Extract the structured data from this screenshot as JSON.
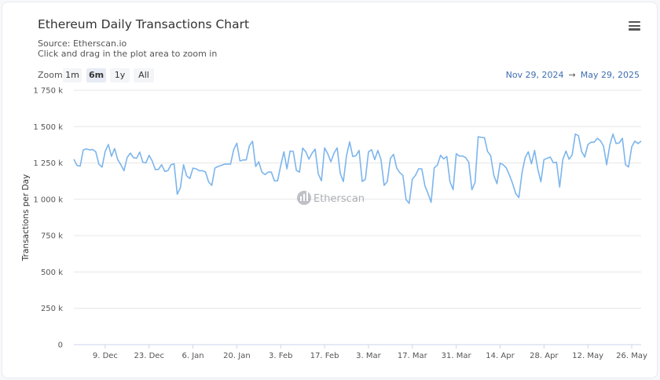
{
  "header": {
    "title": "Ethereum Daily Transactions Chart",
    "source": "Source: Etherscan.io",
    "hint": "Click and drag in the plot area to zoom in",
    "menu_icon": "hamburger-menu-icon"
  },
  "zoom": {
    "label": "Zoom",
    "buttons": [
      {
        "label": "1m"
      },
      {
        "label": "6m",
        "selected": true
      },
      {
        "label": "1y"
      },
      {
        "label": "All"
      }
    ]
  },
  "range": {
    "from": "Nov 29, 2024",
    "arrow": "→",
    "to": "May 29, 2025"
  },
  "watermark": "Etherscan",
  "colors": {
    "line": "#7cb5ec",
    "range_text": "#3f6eb0",
    "grid": "#e6e6e6"
  },
  "chart_data": {
    "type": "line",
    "ylabel": "Transactions per Day",
    "ylim": [
      0,
      1750000
    ],
    "yticks": [
      {
        "value": 0,
        "label": "0"
      },
      {
        "value": 250000,
        "label": "250 k"
      },
      {
        "value": 500000,
        "label": "500 k"
      },
      {
        "value": 750000,
        "label": "750 k"
      },
      {
        "value": 1000000,
        "label": "1 000 k"
      },
      {
        "value": 1250000,
        "label": "1 250 k"
      },
      {
        "value": 1500000,
        "label": "1 500 k"
      },
      {
        "value": 1750000,
        "label": "1 750 k"
      }
    ],
    "xlim": [
      "2024-11-29",
      "2025-05-29"
    ],
    "xticks": [
      {
        "date": "2024-12-09",
        "label": "9. Dec"
      },
      {
        "date": "2024-12-23",
        "label": "23. Dec"
      },
      {
        "date": "2025-01-06",
        "label": "6. Jan"
      },
      {
        "date": "2025-01-20",
        "label": "20. Jan"
      },
      {
        "date": "2025-02-03",
        "label": "3. Feb"
      },
      {
        "date": "2025-02-17",
        "label": "17. Feb"
      },
      {
        "date": "2025-03-03",
        "label": "3. Mar"
      },
      {
        "date": "2025-03-17",
        "label": "17. Mar"
      },
      {
        "date": "2025-03-31",
        "label": "31. Mar"
      },
      {
        "date": "2025-04-14",
        "label": "14. Apr"
      },
      {
        "date": "2025-04-28",
        "label": "28. Apr"
      },
      {
        "date": "2025-05-12",
        "label": "12. May"
      },
      {
        "date": "2025-05-26",
        "label": "26. May"
      }
    ],
    "grid": true,
    "x_interval": "daily",
    "values_k": [
      1276,
      1233,
      1228,
      1340,
      1347,
      1340,
      1343,
      1327,
      1241,
      1222,
      1330,
      1377,
      1296,
      1349,
      1273,
      1238,
      1197,
      1287,
      1318,
      1287,
      1282,
      1325,
      1255,
      1251,
      1303,
      1264,
      1204,
      1206,
      1238,
      1192,
      1197,
      1238,
      1244,
      1035,
      1080,
      1238,
      1161,
      1143,
      1214,
      1210,
      1197,
      1197,
      1189,
      1120,
      1096,
      1215,
      1226,
      1233,
      1242,
      1242,
      1242,
      1341,
      1386,
      1264,
      1271,
      1271,
      1368,
      1399,
      1226,
      1258,
      1187,
      1170,
      1187,
      1187,
      1127,
      1127,
      1233,
      1327,
      1210,
      1332,
      1330,
      1199,
      1187,
      1352,
      1327,
      1276,
      1318,
      1345,
      1174,
      1127,
      1354,
      1314,
      1258,
      1318,
      1354,
      1177,
      1122,
      1300,
      1395,
      1294,
      1300,
      1336,
      1123,
      1138,
      1327,
      1341,
      1273,
      1336,
      1273,
      1096,
      1122,
      1282,
      1309,
      1215,
      1183,
      1165,
      998,
      972,
      1138,
      1165,
      1210,
      1210,
      1093,
      1039,
      979,
      1217,
      1235,
      1303,
      1278,
      1294,
      1120,
      1066,
      1314,
      1298,
      1298,
      1287,
      1255,
      1066,
      1115,
      1431,
      1426,
      1424,
      1330,
      1300,
      1165,
      1107,
      1249,
      1238,
      1215,
      1165,
      1107,
      1039,
      1012,
      1183,
      1287,
      1327,
      1244,
      1336,
      1210,
      1120,
      1273,
      1282,
      1291,
      1251,
      1255,
      1084,
      1273,
      1332,
      1276,
      1305,
      1449,
      1438,
      1330,
      1291,
      1377,
      1393,
      1393,
      1420,
      1404,
      1366,
      1238,
      1372,
      1449,
      1384,
      1388,
      1420,
      1238,
      1222,
      1361,
      1400,
      1384,
      1400
    ]
  }
}
